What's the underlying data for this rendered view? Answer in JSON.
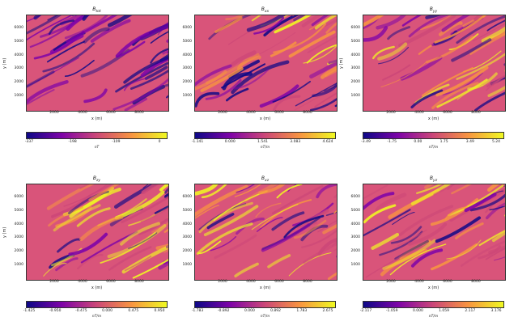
{
  "chart_data": [
    {
      "type": "heatmap",
      "title": "B_{tot}",
      "xlabel": "x (m)",
      "ylabel": "y (m)",
      "x_ticks": [
        "2000",
        "4000",
        "6000",
        "8000"
      ],
      "y_ticks": [
        "1000",
        "2000",
        "3000",
        "4000",
        "5000",
        "6000"
      ],
      "colorbar_label": "nT",
      "colorbar_ticks": [
        "-337",
        "-198",
        "-109",
        "0"
      ],
      "colormap": "plasma"
    },
    {
      "type": "heatmap",
      "title": "B_{xx}",
      "xlabel": "x (m)",
      "ylabel": "",
      "x_ticks": [
        "2000",
        "4000",
        "6000",
        "8000"
      ],
      "y_ticks": [
        "1000",
        "2000",
        "3000",
        "4000",
        "5000",
        "6000"
      ],
      "colorbar_label": "nT/m",
      "colorbar_ticks": [
        "-1.141",
        "0.000",
        "1.541",
        "3.083",
        "4.624"
      ],
      "colormap": "plasma"
    },
    {
      "type": "heatmap",
      "title": "B_{yy}",
      "xlabel": "x (m)",
      "ylabel": "y (m)",
      "x_ticks": [
        "2000",
        "4000",
        "6000",
        "8000"
      ],
      "y_ticks": [
        "1000",
        "2000",
        "3000",
        "4000",
        "5000",
        "6000"
      ],
      "colorbar_label": "nT/m",
      "colorbar_ticks": [
        "-3.49",
        "-1.75",
        "0.00",
        "1.75",
        "3.49",
        "5.24"
      ],
      "colormap": "plasma"
    },
    {
      "type": "heatmap",
      "title": "B_{zy}",
      "xlabel": "x (m)",
      "ylabel": "y (m)",
      "x_ticks": [
        "2000",
        "4000",
        "6000",
        "8000"
      ],
      "y_ticks": [
        "1000",
        "2000",
        "3000",
        "4000",
        "5000",
        "6000"
      ],
      "colorbar_label": "nT/m",
      "colorbar_ticks": [
        "-1.425",
        "-0.950",
        "-0.475",
        "0.000",
        "0.475",
        "0.950"
      ],
      "colormap": "plasma"
    },
    {
      "type": "heatmap",
      "title": "B_{xz}",
      "xlabel": "x (m)",
      "ylabel": "",
      "x_ticks": [
        "2000",
        "4000",
        "6000",
        "8000"
      ],
      "y_ticks": [
        "1000",
        "2000",
        "3000",
        "4000",
        "5000",
        "6000"
      ],
      "colorbar_label": "nT/m",
      "colorbar_ticks": [
        "-1.783",
        "-0.892",
        "0.000",
        "0.892",
        "1.783",
        "2.675"
      ],
      "colormap": "plasma"
    },
    {
      "type": "heatmap",
      "title": "B_{yz}",
      "xlabel": "x (m)",
      "ylabel": "",
      "x_ticks": [
        "2000",
        "4000",
        "6000",
        "8000"
      ],
      "y_ticks": [
        "1000",
        "2000",
        "3000",
        "4000",
        "5000",
        "6000"
      ],
      "colorbar_label": "nT/m",
      "colorbar_ticks": [
        "-2.117",
        "-1.059",
        "0.000",
        "1.059",
        "2.117",
        "3.176"
      ],
      "colormap": "plasma"
    }
  ],
  "colors": {
    "plasma_low": "#0d0887",
    "plasma_mid1": "#7e03a8",
    "plasma_mid2": "#cc4778",
    "plasma_mid3": "#f89540",
    "plasma_high": "#f0f921",
    "background_field": "#d9547a"
  }
}
